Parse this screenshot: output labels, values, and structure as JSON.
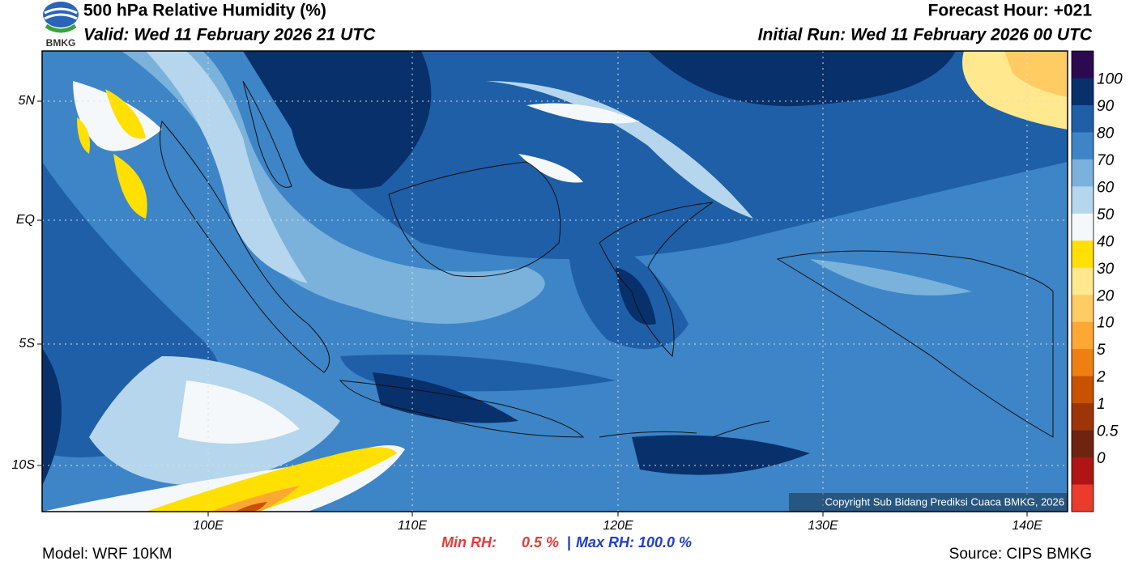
{
  "header": {
    "logo": "BMKG",
    "title": "500 hPa Relative Humidity (%)",
    "valid": "Valid: Wed 11 February 2026 21 UTC",
    "forecast_hour": "Forecast Hour: +021",
    "initial_run": "Initial Run: Wed 11 February 2026 00 UTC"
  },
  "map": {
    "lat_labels": [
      "5N",
      "EQ",
      "5S",
      "10S"
    ],
    "lon_labels": [
      "100E",
      "110E",
      "120E",
      "130E",
      "140E"
    ],
    "copyright": "Copyright Sub Bidang Prediksi Cuaca BMKG, 2026"
  },
  "colorbar": {
    "labels": [
      "100",
      "90",
      "80",
      "70",
      "60",
      "50",
      "40",
      "30",
      "20",
      "10",
      "5",
      "2",
      "1",
      "0.5",
      "0"
    ],
    "colors": [
      "#2b0a4f",
      "#08306b",
      "#1f5fa8",
      "#3d85c6",
      "#7ab2dc",
      "#b5d6ed",
      "#f5f8fa",
      "#ffe000",
      "#ffe88e",
      "#ffcb63",
      "#ffa733",
      "#f07f12",
      "#c85200",
      "#9e3508",
      "#6e2410",
      "#b01414",
      "#ea3b2c"
    ]
  },
  "footer": {
    "model": "Model: WRF 10KM",
    "min_rh_label": "Min RH:",
    "min_rh": "0.5 %",
    "separator": "|",
    "max_rh": "Max RH: 100.0 %",
    "source": "Source: CIPS BMKG"
  }
}
